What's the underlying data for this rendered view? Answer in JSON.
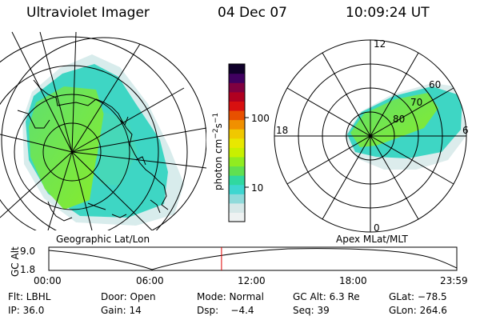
{
  "header": {
    "title": "Ultraviolet Imager",
    "date": "04 Dec 07",
    "time": "10:09:24 UT"
  },
  "left_panel": {
    "caption": "Geographic Lat/Lon"
  },
  "right_panel": {
    "caption": "Apex MLat/MLT",
    "mlt_labels": [
      "12",
      "18",
      "6",
      "0"
    ],
    "lat_labels": [
      "60",
      "70",
      "80"
    ]
  },
  "colorbar": {
    "axis_label": "photon cm-2s-1",
    "ticks": [
      {
        "label": "100",
        "value": 100
      },
      {
        "label": "10",
        "value": 10
      }
    ],
    "colors": [
      "#eef2f2",
      "#d6e8e8",
      "#8fdada",
      "#3ed6d0",
      "#30d8a0",
      "#60e050",
      "#90ec20",
      "#c8f000",
      "#e8e800",
      "#f0c800",
      "#f09000",
      "#e85000",
      "#d81010",
      "#b00020",
      "#800040",
      "#400060",
      "#10002a"
    ]
  },
  "timeline": {
    "y_axis_label": "GC Alt",
    "y_ticks": [
      "9.0",
      "1.8"
    ],
    "x_ticks": [
      "00:00",
      "06:00",
      "12:00",
      "18:00",
      "23:59"
    ],
    "current_time_hours": 10.16
  },
  "status": {
    "row1": [
      {
        "key": "filter",
        "text": "Flt: LBHL"
      },
      {
        "key": "door",
        "text": "Door: Open"
      },
      {
        "key": "mode",
        "text": "Mode: Normal"
      },
      {
        "key": "gcalt",
        "text": "GC Alt: 6.3 Re"
      },
      {
        "key": "glat",
        "text": "GLat: −78.5"
      }
    ],
    "row2": [
      {
        "key": "ip",
        "text": "IP: 36.0"
      },
      {
        "key": "gain",
        "text": "Gain: 14"
      },
      {
        "key": "dsp",
        "text": "Dsp:    −4.4"
      },
      {
        "key": "seq",
        "text": "Seq: 39"
      },
      {
        "key": "glon",
        "text": "GLon: 264.6"
      }
    ]
  }
}
